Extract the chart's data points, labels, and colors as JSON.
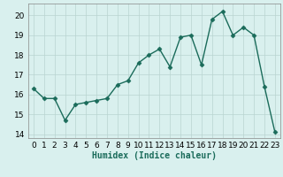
{
  "x": [
    0,
    1,
    2,
    3,
    4,
    5,
    6,
    7,
    8,
    9,
    10,
    11,
    12,
    13,
    14,
    15,
    16,
    17,
    18,
    19,
    20,
    21,
    22,
    23
  ],
  "y": [
    16.3,
    15.8,
    15.8,
    14.7,
    15.5,
    15.6,
    15.7,
    15.8,
    16.5,
    16.7,
    17.6,
    18.0,
    18.3,
    17.4,
    18.9,
    19.0,
    17.5,
    19.8,
    20.2,
    19.0,
    19.4,
    19.0,
    16.4,
    14.1
  ],
  "line_color": "#1a6b5a",
  "marker": "D",
  "marker_size": 2.5,
  "bg_color": "#d9f0ee",
  "grid_color": "#b8d4d0",
  "xlabel": "Humidex (Indice chaleur)",
  "xlim": [
    -0.5,
    23.5
  ],
  "ylim": [
    13.8,
    20.6
  ],
  "yticks": [
    14,
    15,
    16,
    17,
    18,
    19,
    20
  ],
  "xticks": [
    0,
    1,
    2,
    3,
    4,
    5,
    6,
    7,
    8,
    9,
    10,
    11,
    12,
    13,
    14,
    15,
    16,
    17,
    18,
    19,
    20,
    21,
    22,
    23
  ],
  "xlabel_fontsize": 7,
  "tick_fontsize": 6.5,
  "linewidth": 1.0
}
